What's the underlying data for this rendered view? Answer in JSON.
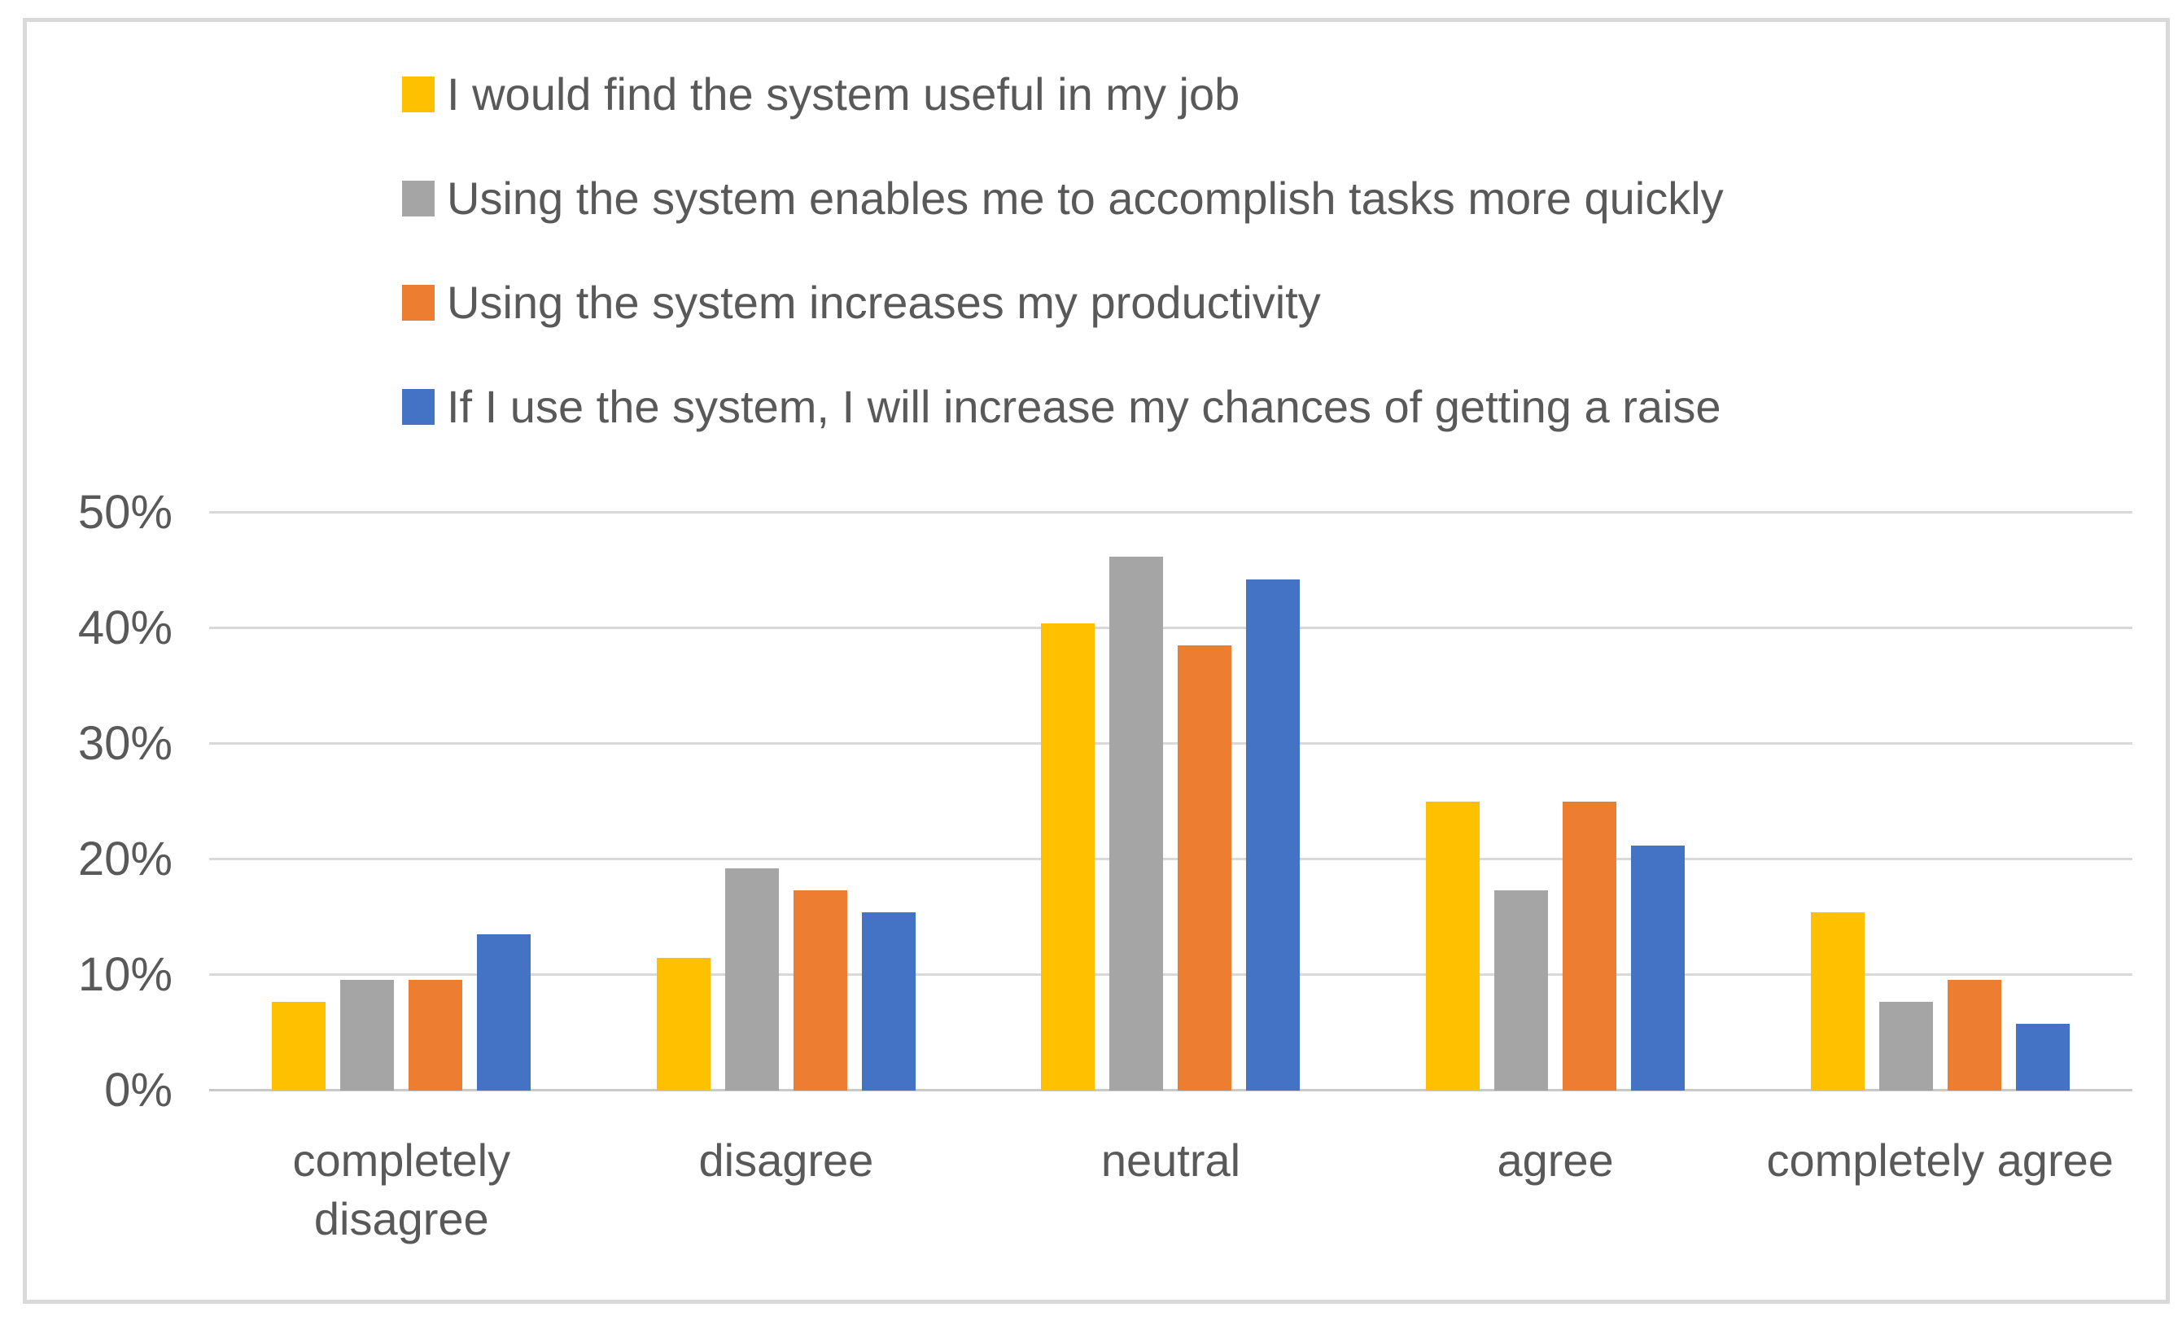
{
  "chart_data": {
    "type": "bar",
    "title": "",
    "categories": [
      "completely disagree",
      "disagree",
      "neutral",
      "agree",
      "completely agree"
    ],
    "series": [
      {
        "name": "I would find the system useful in my job",
        "color": "#FFC000",
        "values": [
          7.7,
          11.5,
          40.4,
          25.0,
          15.4
        ]
      },
      {
        "name": "Using the system enables me to accomplish tasks more quickly",
        "color": "#A5A5A5",
        "values": [
          9.6,
          19.2,
          46.2,
          17.3,
          7.7
        ]
      },
      {
        "name": "Using the system increases my productivity",
        "color": "#ED7D31",
        "values": [
          9.6,
          17.3,
          38.5,
          25.0,
          9.6
        ]
      },
      {
        "name": "If I use the system, I will increase my chances of getting a raise",
        "color": "#4472C4",
        "values": [
          13.5,
          15.4,
          44.2,
          21.2,
          5.8
        ]
      }
    ],
    "xlabel": "",
    "ylabel": "",
    "ylim": [
      0,
      50
    ],
    "yticks": [
      "0%",
      "10%",
      "20%",
      "30%",
      "40%",
      "50%"
    ],
    "grid": "horizontal",
    "legend_position": "top-left"
  },
  "colors": {
    "text": "#595959",
    "gridline": "#D9D9D9",
    "axis_line": "#C9C9C9",
    "frame_border": "#D9D9D9",
    "background": "#FFFFFF"
  }
}
